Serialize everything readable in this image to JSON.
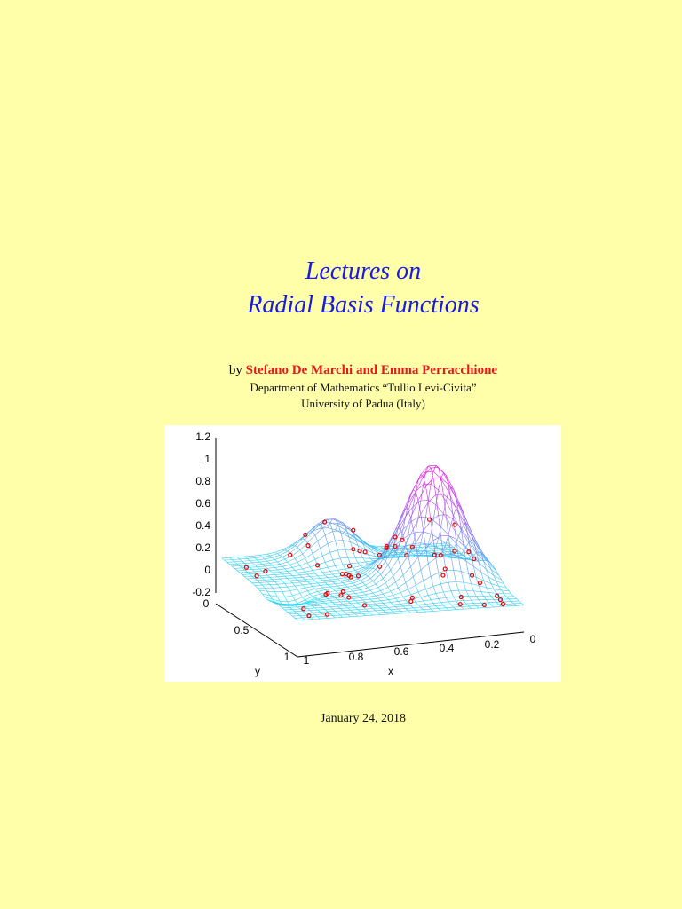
{
  "title": {
    "line1": "Lectures on",
    "line2": "Radial Basis Functions"
  },
  "authors": {
    "prefix": "by",
    "names": "Stefano De Marchi and Emma Perracchione"
  },
  "affiliation": {
    "department": "Department of Mathematics “Tullio Levi-Civita”",
    "university": "University of Padua (Italy)"
  },
  "figure": {
    "z_ticks": [
      "1.2",
      "1",
      "0.8",
      "0.6",
      "0.4",
      "0.2",
      "0",
      "-0.2"
    ],
    "y_ticks": [
      "0",
      "0.5",
      "1"
    ],
    "y_label": "y",
    "x_ticks": [
      "1",
      "0.8",
      "0.6",
      "0.4",
      "0.2",
      "0"
    ],
    "x_label": "x"
  },
  "date": "January 24, 2018"
}
